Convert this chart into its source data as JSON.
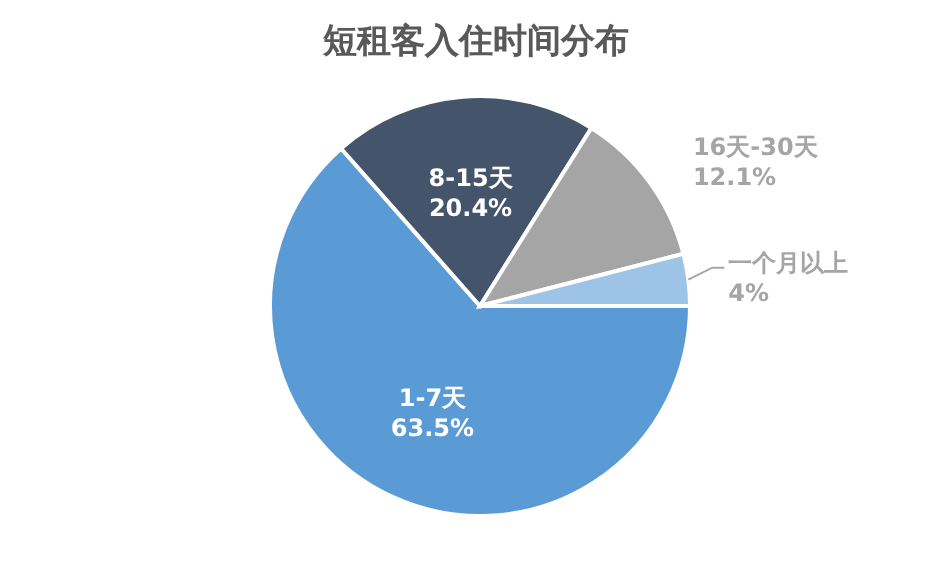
{
  "chart_data": {
    "type": "pie",
    "title": "短租客入住时间分布",
    "categories": [
      "1-7天",
      "8-15天",
      "16天-30天",
      "一个月以上"
    ],
    "values": [
      63.5,
      20.4,
      12.1,
      4
    ],
    "colors": [
      "#5b9bd5",
      "#44546a",
      "#a5a5a5",
      "#9dc3e6"
    ],
    "value_labels": [
      "63.5%",
      "20.4%",
      "12.1%",
      "4%"
    ]
  }
}
